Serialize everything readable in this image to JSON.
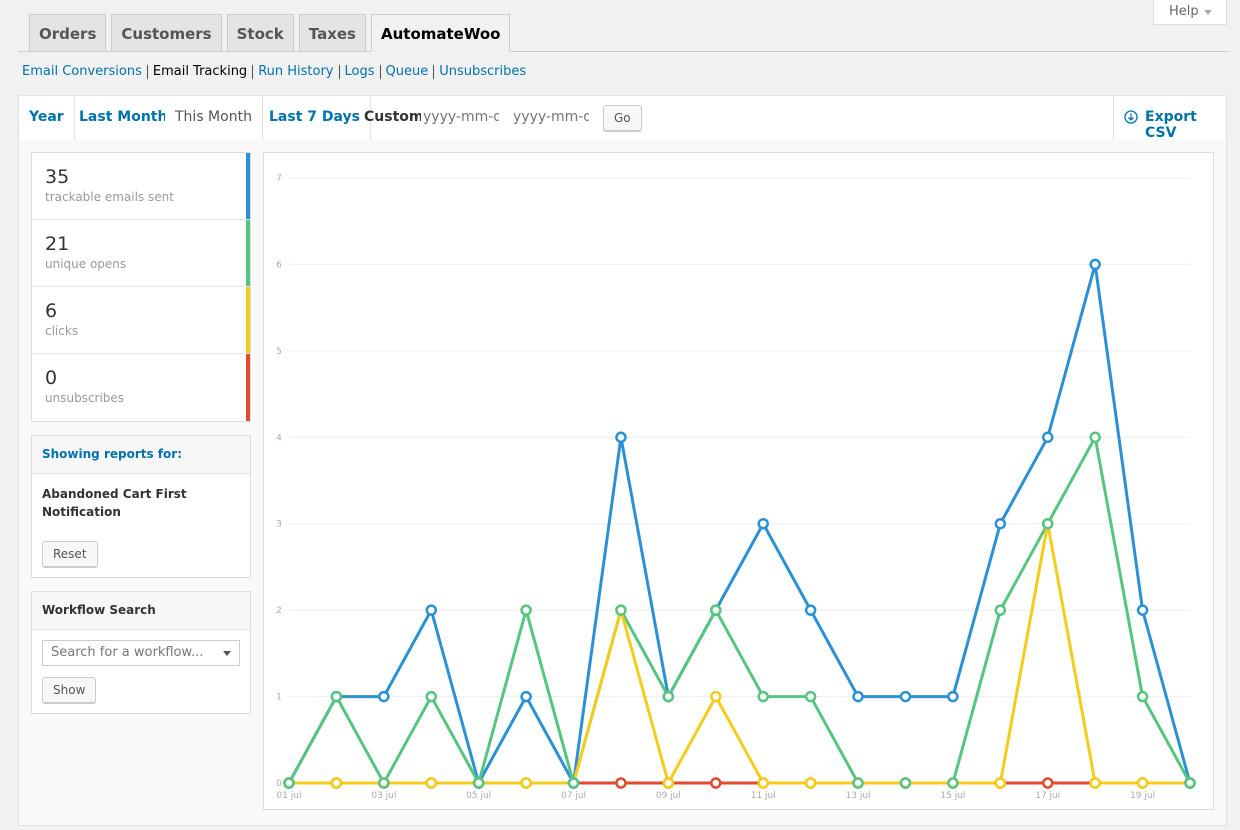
{
  "help": "Help",
  "nav_tabs": [
    "Orders",
    "Customers",
    "Stock",
    "Taxes",
    "AutomateWoo"
  ],
  "subnav": [
    "Email Conversions",
    "Email Tracking",
    "Run History",
    "Logs",
    "Queue",
    "Unsubscribes"
  ],
  "range_tabs": [
    "Year",
    "Last Month",
    "This Month",
    "Last 7 Days"
  ],
  "custom": {
    "label": "Custom:",
    "from_placeholder": "yyyy-mm-dd",
    "to_placeholder": "yyyy-mm-dd",
    "button": "Go"
  },
  "export": "Export CSV",
  "summary": [
    35,
    21,
    6,
    0
  ],
  "filter": {
    "heading": "Showing reports for:",
    "workflow": "Abandoned Cart First Notification",
    "button": "Reset"
  },
  "search": {
    "heading": "Workflow Search",
    "placeholder": "Search for a workflow...",
    "button": "Show"
  },
  "chart_data": {
    "type": "line",
    "categories": [
      "01 jul",
      null,
      "03 jul",
      null,
      "05 jul",
      null,
      "07 jul",
      null,
      "09 jul",
      null,
      "11 jul",
      null,
      "13 jul",
      null,
      "15 jul",
      null,
      "17 jul",
      null,
      "19 jul",
      null
    ],
    "series": [
      {
        "name": "trackable emails sent",
        "color": "#2b91d5",
        "values": [
          0,
          1,
          1,
          2,
          0,
          1,
          0,
          4,
          1,
          2,
          3,
          2,
          1,
          1,
          1,
          3,
          4,
          6,
          2,
          0
        ]
      },
      {
        "name": "unique opens",
        "color": "#55c57f",
        "values": [
          0,
          1,
          0,
          1,
          0,
          2,
          0,
          2,
          1,
          2,
          1,
          1,
          0,
          0,
          0,
          2,
          3,
          4,
          1,
          0
        ]
      },
      {
        "name": "clicks",
        "color": "#f5cc1a",
        "values": [
          0,
          0,
          0,
          0,
          0,
          0,
          0,
          2,
          0,
          1,
          0,
          0,
          0,
          0,
          0,
          0,
          3,
          0,
          0,
          0
        ]
      },
      {
        "name": "unsubscribes",
        "color": "#e2492f",
        "values": [
          0,
          0,
          0,
          0,
          0,
          0,
          0,
          0,
          0,
          0,
          0,
          0,
          0,
          0,
          0,
          0,
          0,
          0,
          0,
          0
        ]
      }
    ],
    "ylim": [
      0,
      7
    ],
    "yticks": [
      0,
      1,
      2,
      3,
      4,
      5,
      6,
      7
    ],
    "grid": true
  }
}
